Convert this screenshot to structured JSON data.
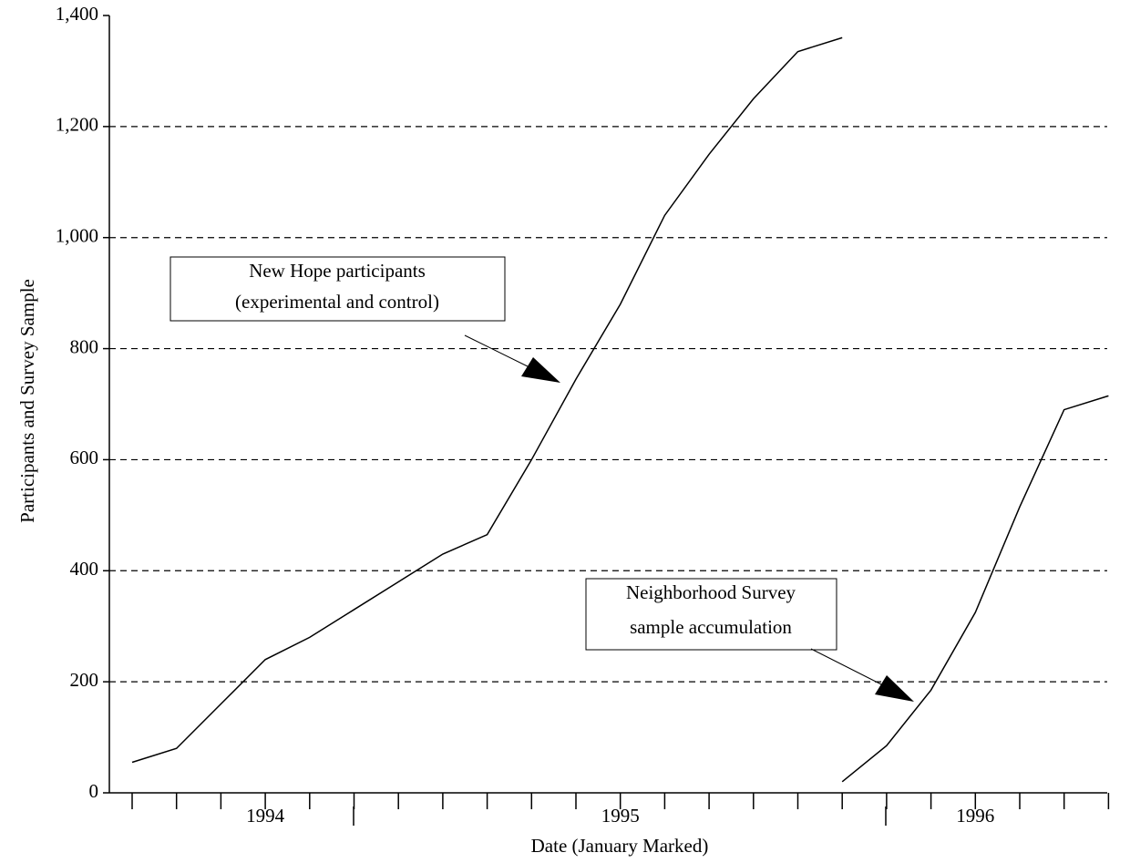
{
  "chart_data": {
    "type": "line",
    "x_label": "Date (January Marked)",
    "y_label": "Participants and Survey Sample",
    "categories": [
      null,
      null,
      null,
      "1994",
      null,
      null,
      null,
      null,
      null,
      null,
      null,
      "1995",
      null,
      null,
      null,
      null,
      null,
      null,
      null,
      "1996",
      null,
      null,
      null
    ],
    "series": [
      {
        "color": "#000000",
        "values": [
          55,
          80,
          160,
          240,
          280,
          330,
          380,
          430,
          465,
          600,
          745,
          880,
          1040,
          1150,
          1250,
          1335,
          1360,
          null,
          null,
          null,
          null,
          null,
          null
        ]
      },
      {
        "color": "#000000",
        "values": [
          null,
          null,
          null,
          null,
          null,
          null,
          null,
          null,
          null,
          null,
          null,
          null,
          null,
          null,
          null,
          null,
          20,
          85,
          185,
          325,
          515,
          690,
          715
        ]
      }
    ],
    "ylim": [
      0,
      1400
    ],
    "yticks": [
      0,
      200,
      400,
      600,
      800,
      {
        "value": 1000,
        "label": "1,000"
      },
      {
        "value": 1200,
        "label": "1,200"
      },
      {
        "value": 1400,
        "label": "1,400"
      }
    ],
    "grid": true,
    "annotations": [
      {
        "lines": [
          "New Hope participants",
          "(experimental and control)"
        ]
      },
      {
        "lines": [
          "Neighborhood Survey",
          "sample accumulation"
        ]
      }
    ]
  }
}
